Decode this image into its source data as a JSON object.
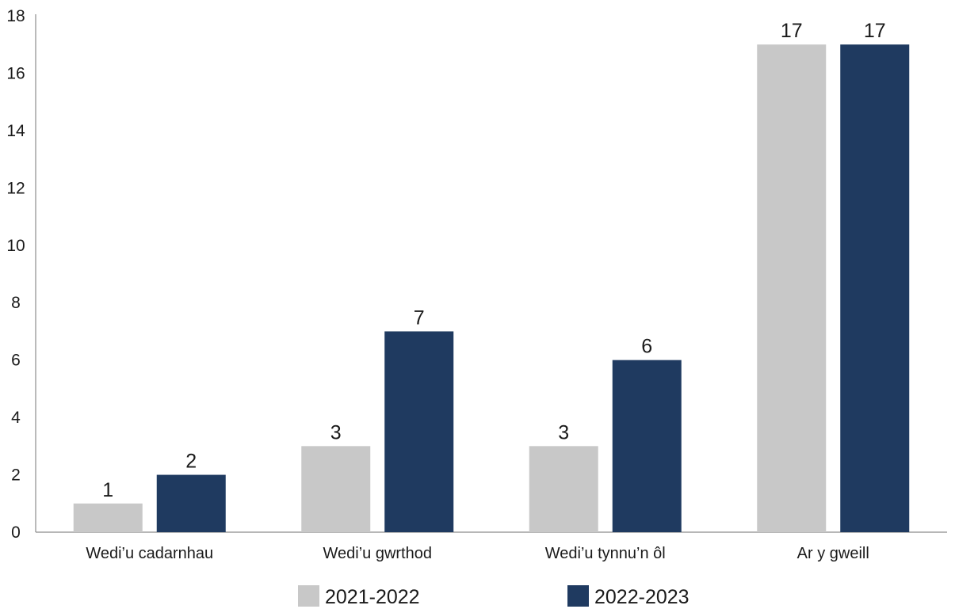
{
  "chart_data": {
    "type": "bar",
    "categories": [
      "Wedi’u cadarnhau",
      "Wedi’u gwrthod",
      "Wedi’u tynnu’n ôl",
      "Ar y gweill"
    ],
    "series": [
      {
        "name": "2021-2022",
        "values": [
          1,
          3,
          3,
          17
        ],
        "color": "#c8c8c8"
      },
      {
        "name": "2022-2023",
        "values": [
          2,
          7,
          6,
          17
        ],
        "color": "#1f3a60"
      }
    ],
    "yticks": [
      0,
      2,
      4,
      6,
      8,
      10,
      12,
      14,
      16,
      18
    ],
    "ylim": [
      0,
      18
    ],
    "grid": false,
    "data_labels": true,
    "legend_position": "bottom-center"
  }
}
